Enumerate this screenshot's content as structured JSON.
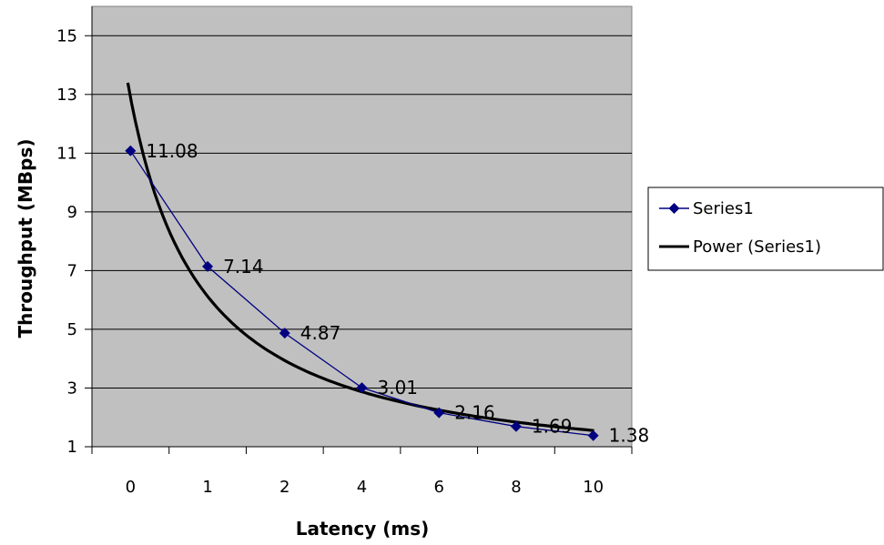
{
  "chart_data": {
    "type": "line",
    "xlabel": "Latency (ms)",
    "ylabel": "Throughput (MBps)",
    "categories": [
      "0",
      "1",
      "2",
      "4",
      "6",
      "8",
      "10"
    ],
    "ylim": [
      1,
      16
    ],
    "yticks": [
      "1",
      "3",
      "5",
      "7",
      "9",
      "11",
      "13",
      "15"
    ],
    "grid": "horizontal",
    "legend_position": "right",
    "series": [
      {
        "name": "Series1",
        "values": [
          11.08,
          7.14,
          4.87,
          3.01,
          2.16,
          1.69,
          1.38
        ],
        "labels": [
          "11.08",
          "7.14",
          "4.87",
          "3.01",
          "2.16",
          "1.69",
          "1.38"
        ],
        "color": "#000080",
        "marker": "diamond"
      },
      {
        "name": "Power (Series1)",
        "trendline": "power",
        "color": "#000000",
        "start_value": 13.4,
        "end_value": 1.55
      }
    ],
    "plot_background": "#c0c0c0"
  }
}
